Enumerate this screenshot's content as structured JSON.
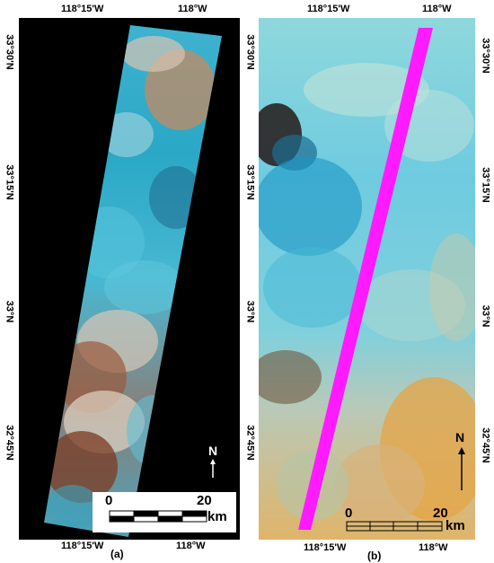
{
  "panel_a": {
    "caption": "(a)",
    "top_lon_labels": [
      "118°15'W",
      "118°W"
    ],
    "bottom_lon_labels": [
      "118°15'W",
      "118°W"
    ],
    "left_lat_labels": [
      "33°30'N",
      "33°15'N",
      "33°N",
      "32°45'N"
    ],
    "scale": {
      "start": "0",
      "end": "20",
      "unit": "km"
    },
    "north": "N"
  },
  "panel_b": {
    "caption": "(b)",
    "top_lon_labels": [
      "118°15'W",
      "118°W"
    ],
    "bottom_lon_labels": [
      "118°15'W",
      "118°W"
    ],
    "left_lat_labels": [
      "33°30'N",
      "33°15'N",
      "33°N",
      "32°45'N"
    ],
    "right_lat_labels": [
      "33°30'N",
      "33°15'N",
      "33°N",
      "32°45'N"
    ],
    "scale": {
      "start": "0",
      "end": "20",
      "unit": "km"
    },
    "north": "N"
  },
  "colors": {
    "track": "#ff1aff",
    "water_cyan": "#35b6d6",
    "land_tan": "#d8b89a",
    "land_orange": "#e8a140",
    "background": "#000000"
  }
}
